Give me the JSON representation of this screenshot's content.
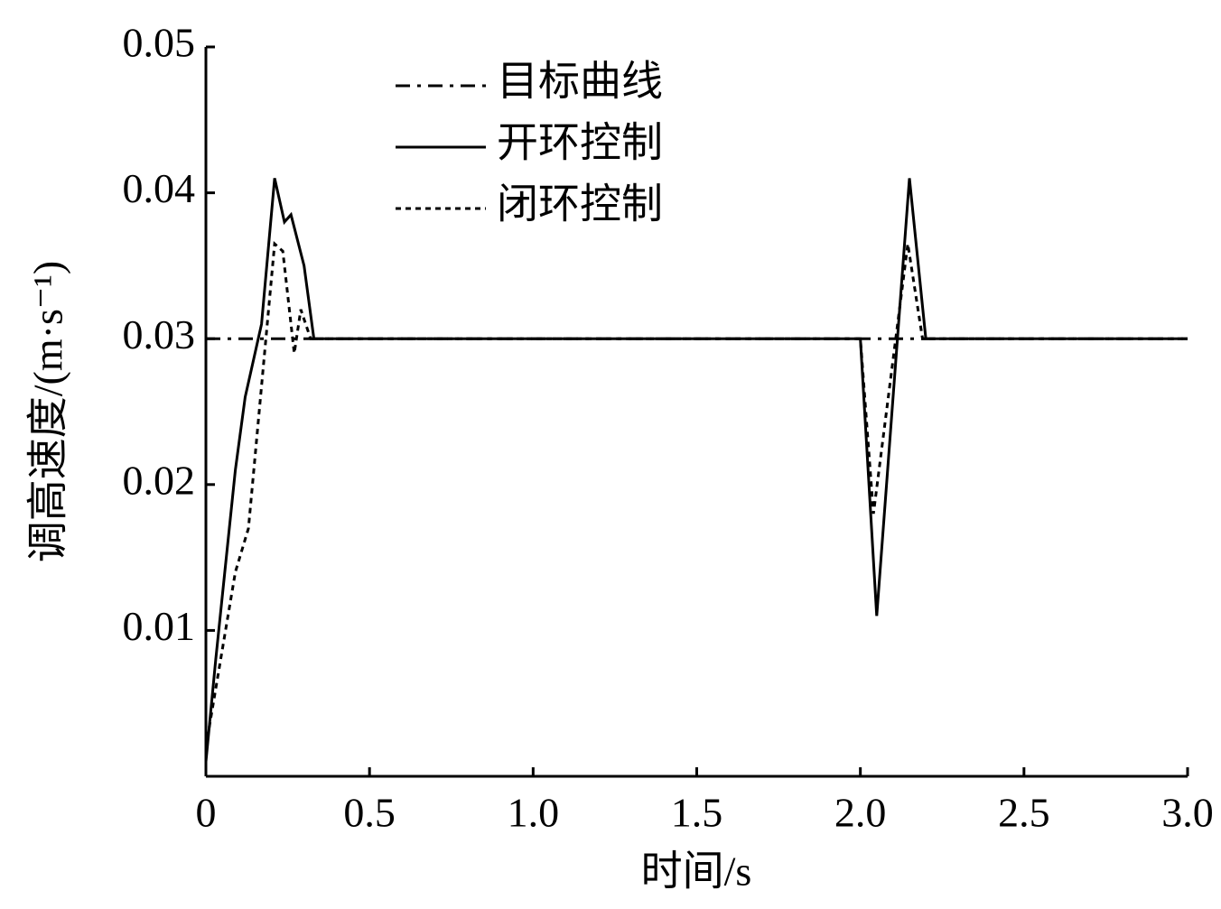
{
  "chart_data": {
    "type": "line",
    "xlabel": "时间/s",
    "ylabel": "调高速度/(m·s⁻¹)",
    "xlim": [
      0,
      3.0
    ],
    "ylim": [
      0,
      0.05
    ],
    "xticks": [
      0,
      0.5,
      {
        "value": 1.0,
        "label": "1.0"
      },
      1.5,
      {
        "value": 2.0,
        "label": "2.0"
      },
      2.5,
      {
        "value": 3.0,
        "label": "3.0"
      }
    ],
    "yticks": [
      0.01,
      0.02,
      0.03,
      0.04,
      0.05
    ],
    "legend": "upper-left",
    "series": [
      {
        "name": "目标曲线",
        "color": "#000000",
        "style": "dashdot",
        "x": [
          0,
          3.0
        ],
        "values": [
          0.03,
          0.03
        ]
      },
      {
        "name": "开环控制",
        "color": "#000000",
        "style": "solid",
        "x": [
          0,
          0.03,
          0.09,
          0.12,
          0.14,
          0.17,
          0.21,
          0.24,
          0.26,
          0.3,
          0.33,
          2.0,
          2.05,
          2.15,
          2.2,
          3.0
        ],
        "values": [
          0.001,
          0.008,
          0.021,
          0.026,
          0.028,
          0.031,
          0.041,
          0.038,
          0.0385,
          0.035,
          0.03,
          0.03,
          0.011,
          0.041,
          0.03,
          0.03
        ]
      },
      {
        "name": "闭环控制",
        "color": "#000000",
        "style": "dotted",
        "x": [
          0,
          0.09,
          0.13,
          0.21,
          0.235,
          0.27,
          0.29,
          0.32,
          2.0,
          2.04,
          2.145,
          2.19,
          3.0
        ],
        "values": [
          0.002,
          0.014,
          0.017,
          0.0365,
          0.036,
          0.029,
          0.032,
          0.03,
          0.03,
          0.018,
          0.0365,
          0.03,
          0.03
        ]
      }
    ]
  }
}
